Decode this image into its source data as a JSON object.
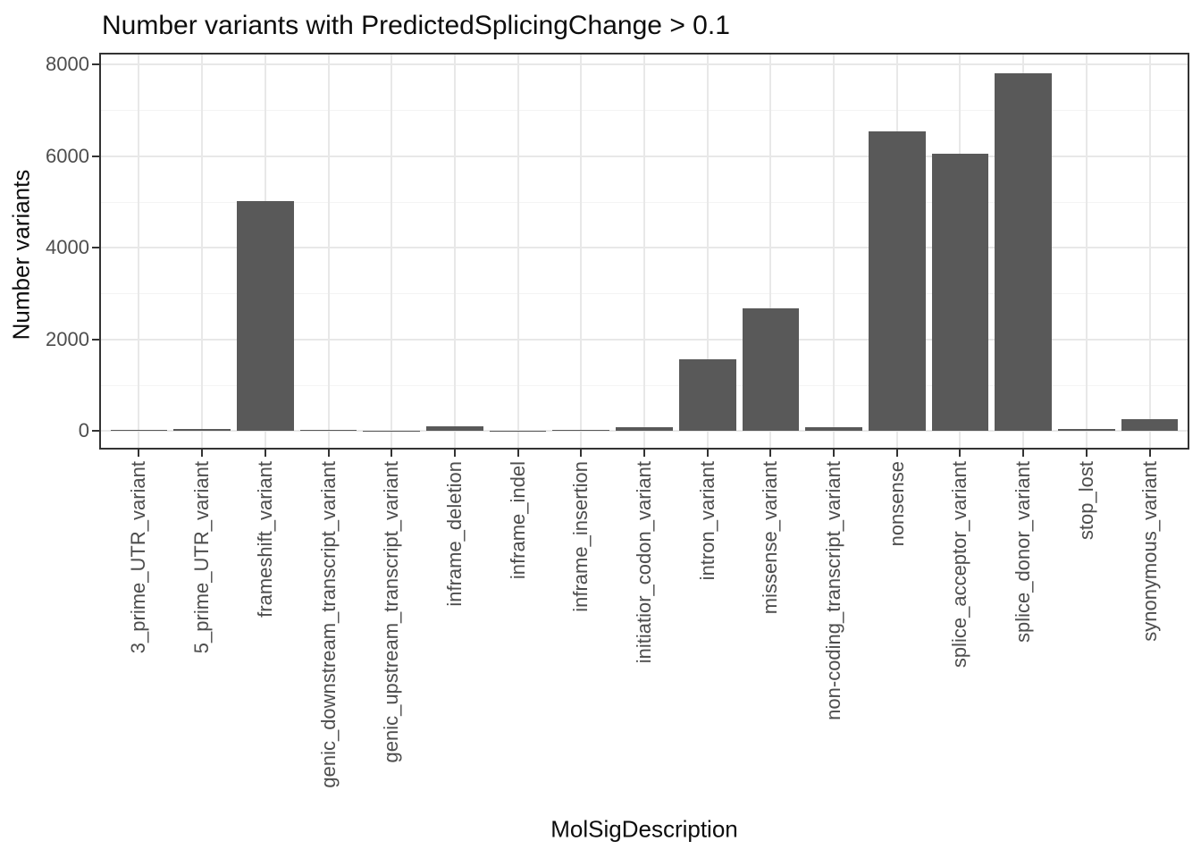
{
  "chart_data": {
    "type": "bar",
    "title": "Number variants with PredictedSplicingChange > 0.1",
    "xlabel": "MolSigDescription",
    "ylabel": "Number variants",
    "categories": [
      "3_prime_UTR_variant",
      "5_prime_UTR_variant",
      "frameshift_variant",
      "genic_downstream_transcript_variant",
      "genic_upstream_transcript_variant",
      "inframe_deletion",
      "inframe_indel",
      "inframe_insertion",
      "initiatior_codon_variant",
      "intron_variant",
      "missense_variant",
      "non-coding_transcript_variant",
      "nonsense",
      "splice_acceptor_variant",
      "splice_donor_variant",
      "stop_lost",
      "synonymous_variant"
    ],
    "values": [
      25,
      40,
      5010,
      20,
      6,
      100,
      4,
      18,
      70,
      1570,
      2670,
      70,
      6540,
      6040,
      7800,
      35,
      250
    ],
    "ylim": [
      0,
      8000
    ],
    "y_ticks": [
      "0",
      "2000",
      "4000",
      "6000",
      "8000"
    ],
    "y_tick_values": [
      0,
      2000,
      4000,
      6000,
      8000
    ],
    "y_minor_tick_values": [
      1000,
      3000,
      5000,
      7000
    ],
    "grid": "on",
    "legend_position": "none",
    "bar_color": "#595959"
  },
  "style": {
    "background": "#ffffff",
    "panel_border_color": "#333333",
    "grid_major_color": "#e8e8e8",
    "grid_minor_color": "#f4f4f4",
    "tick_color": "#333333",
    "axis_text_color": "#4d4d4d",
    "title_color": "#0d0d0d"
  }
}
